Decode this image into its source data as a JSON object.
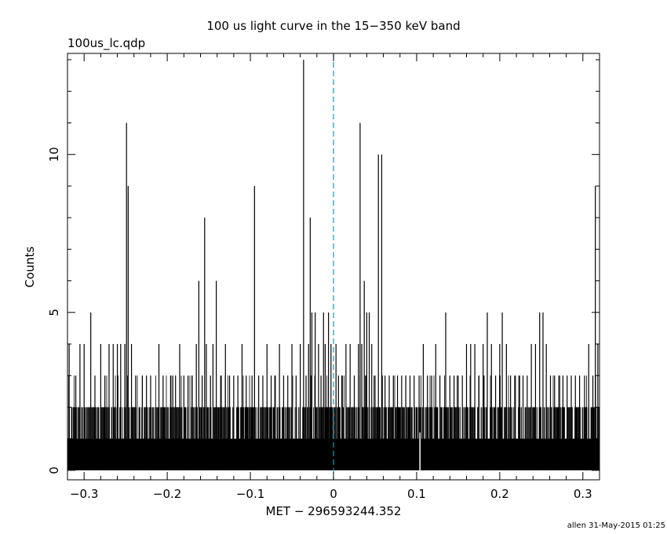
{
  "file_label": "100us_lc.qdp",
  "footer": "allen 31-May-2015 01:25",
  "chart_data": {
    "type": "bar",
    "title": "100 us light curve in the 15−350 keV band",
    "xlabel": "MET − 296593244.352",
    "ylabel": "Counts",
    "xlim": [
      -0.32,
      0.32
    ],
    "ylim": [
      -0.3,
      13.2
    ],
    "bin_width": 0.0001,
    "x_ticks": [
      -0.3,
      -0.2,
      -0.1,
      0,
      0.1,
      0.2,
      0.3
    ],
    "x_tick_labels": [
      "−0.3",
      "−0.2",
      "−0.1",
      "0",
      "0.1",
      "0.2",
      "0.3"
    ],
    "y_ticks": [
      0,
      5,
      10
    ],
    "y_tick_labels": [
      "0",
      "5",
      "10"
    ],
    "trigger_line": {
      "x": 0,
      "color": "#1a9aa8",
      "style": "dashed"
    },
    "series": [
      {
        "baseline_counts": 2,
        "peaks": [
          {
            "x": -0.318,
            "y": 4
          },
          {
            "x": -0.31,
            "y": 3
          },
          {
            "x": -0.305,
            "y": 4
          },
          {
            "x": -0.3,
            "y": 4
          },
          {
            "x": -0.292,
            "y": 5
          },
          {
            "x": -0.287,
            "y": 3
          },
          {
            "x": -0.28,
            "y": 4
          },
          {
            "x": -0.275,
            "y": 3
          },
          {
            "x": -0.27,
            "y": 4
          },
          {
            "x": -0.265,
            "y": 4
          },
          {
            "x": -0.26,
            "y": 4
          },
          {
            "x": -0.256,
            "y": 4
          },
          {
            "x": -0.251,
            "y": 4
          },
          {
            "x": -0.249,
            "y": 11
          },
          {
            "x": -0.247,
            "y": 9
          },
          {
            "x": -0.243,
            "y": 4
          },
          {
            "x": -0.238,
            "y": 3
          },
          {
            "x": -0.23,
            "y": 3
          },
          {
            "x": -0.225,
            "y": 3
          },
          {
            "x": -0.22,
            "y": 3
          },
          {
            "x": -0.21,
            "y": 4
          },
          {
            "x": -0.205,
            "y": 3
          },
          {
            "x": -0.196,
            "y": 3
          },
          {
            "x": -0.19,
            "y": 3
          },
          {
            "x": -0.185,
            "y": 4
          },
          {
            "x": -0.18,
            "y": 3
          },
          {
            "x": -0.175,
            "y": 3
          },
          {
            "x": -0.17,
            "y": 3
          },
          {
            "x": -0.165,
            "y": 4
          },
          {
            "x": -0.162,
            "y": 6
          },
          {
            "x": -0.158,
            "y": 3
          },
          {
            "x": -0.155,
            "y": 8
          },
          {
            "x": -0.153,
            "y": 4
          },
          {
            "x": -0.148,
            "y": 3
          },
          {
            "x": -0.145,
            "y": 4
          },
          {
            "x": -0.141,
            "y": 6
          },
          {
            "x": -0.135,
            "y": 3
          },
          {
            "x": -0.13,
            "y": 4
          },
          {
            "x": -0.125,
            "y": 3
          },
          {
            "x": -0.12,
            "y": 3
          },
          {
            "x": -0.115,
            "y": 3
          },
          {
            "x": -0.11,
            "y": 4
          },
          {
            "x": -0.105,
            "y": 3
          },
          {
            "x": -0.098,
            "y": 3
          },
          {
            "x": -0.095,
            "y": 9
          },
          {
            "x": -0.09,
            "y": 3
          },
          {
            "x": -0.085,
            "y": 3
          },
          {
            "x": -0.08,
            "y": 4
          },
          {
            "x": -0.075,
            "y": 3
          },
          {
            "x": -0.07,
            "y": 3
          },
          {
            "x": -0.065,
            "y": 4
          },
          {
            "x": -0.06,
            "y": 3
          },
          {
            "x": -0.055,
            "y": 3
          },
          {
            "x": -0.05,
            "y": 4
          },
          {
            "x": -0.045,
            "y": 3
          },
          {
            "x": -0.04,
            "y": 4
          },
          {
            "x": -0.036,
            "y": 13
          },
          {
            "x": -0.033,
            "y": 3
          },
          {
            "x": -0.03,
            "y": 4
          },
          {
            "x": -0.028,
            "y": 8
          },
          {
            "x": -0.026,
            "y": 5
          },
          {
            "x": -0.022,
            "y": 5
          },
          {
            "x": -0.018,
            "y": 4
          },
          {
            "x": -0.015,
            "y": 3
          },
          {
            "x": -0.012,
            "y": 5
          },
          {
            "x": -0.01,
            "y": 4
          },
          {
            "x": -0.006,
            "y": 5
          },
          {
            "x": -0.003,
            "y": 4
          },
          {
            "x": 0.003,
            "y": 4
          },
          {
            "x": 0.006,
            "y": 3
          },
          {
            "x": 0.01,
            "y": 3
          },
          {
            "x": 0.015,
            "y": 4
          },
          {
            "x": 0.02,
            "y": 4
          },
          {
            "x": 0.025,
            "y": 3
          },
          {
            "x": 0.03,
            "y": 4
          },
          {
            "x": 0.032,
            "y": 11
          },
          {
            "x": 0.034,
            "y": 4
          },
          {
            "x": 0.037,
            "y": 6
          },
          {
            "x": 0.04,
            "y": 5
          },
          {
            "x": 0.043,
            "y": 5
          },
          {
            "x": 0.046,
            "y": 4
          },
          {
            "x": 0.05,
            "y": 3
          },
          {
            "x": 0.054,
            "y": 10
          },
          {
            "x": 0.058,
            "y": 10
          },
          {
            "x": 0.062,
            "y": 3
          },
          {
            "x": 0.067,
            "y": 3
          },
          {
            "x": 0.072,
            "y": 3
          },
          {
            "x": 0.077,
            "y": 3
          },
          {
            "x": 0.082,
            "y": 3
          },
          {
            "x": 0.087,
            "y": 3
          },
          {
            "x": 0.092,
            "y": 3
          },
          {
            "x": 0.097,
            "y": 3
          },
          {
            "x": 0.103,
            "y": 3
          },
          {
            "x": 0.108,
            "y": 4
          },
          {
            "x": 0.113,
            "y": 3
          },
          {
            "x": 0.118,
            "y": 3
          },
          {
            "x": 0.123,
            "y": 4
          },
          {
            "x": 0.128,
            "y": 3
          },
          {
            "x": 0.135,
            "y": 5
          },
          {
            "x": 0.14,
            "y": 3
          },
          {
            "x": 0.145,
            "y": 3
          },
          {
            "x": 0.15,
            "y": 3
          },
          {
            "x": 0.155,
            "y": 3
          },
          {
            "x": 0.16,
            "y": 4
          },
          {
            "x": 0.165,
            "y": 4
          },
          {
            "x": 0.17,
            "y": 4
          },
          {
            "x": 0.175,
            "y": 3
          },
          {
            "x": 0.18,
            "y": 4
          },
          {
            "x": 0.185,
            "y": 5
          },
          {
            "x": 0.19,
            "y": 4
          },
          {
            "x": 0.195,
            "y": 3
          },
          {
            "x": 0.2,
            "y": 4
          },
          {
            "x": 0.203,
            "y": 5
          },
          {
            "x": 0.208,
            "y": 4
          },
          {
            "x": 0.213,
            "y": 3
          },
          {
            "x": 0.218,
            "y": 3
          },
          {
            "x": 0.223,
            "y": 3
          },
          {
            "x": 0.228,
            "y": 3
          },
          {
            "x": 0.233,
            "y": 3
          },
          {
            "x": 0.238,
            "y": 4
          },
          {
            "x": 0.243,
            "y": 4
          },
          {
            "x": 0.248,
            "y": 5
          },
          {
            "x": 0.252,
            "y": 5
          },
          {
            "x": 0.256,
            "y": 4
          },
          {
            "x": 0.261,
            "y": 3
          },
          {
            "x": 0.266,
            "y": 3
          },
          {
            "x": 0.271,
            "y": 3
          },
          {
            "x": 0.276,
            "y": 3
          },
          {
            "x": 0.281,
            "y": 3
          },
          {
            "x": 0.286,
            "y": 3
          },
          {
            "x": 0.291,
            "y": 3
          },
          {
            "x": 0.296,
            "y": 3
          },
          {
            "x": 0.302,
            "y": 3
          },
          {
            "x": 0.307,
            "y": 4
          },
          {
            "x": 0.312,
            "y": 3
          },
          {
            "x": 0.315,
            "y": 9
          },
          {
            "x": 0.318,
            "y": 4
          }
        ],
        "gaps": [
          {
            "x": 0.104,
            "y": 0
          }
        ]
      }
    ]
  }
}
